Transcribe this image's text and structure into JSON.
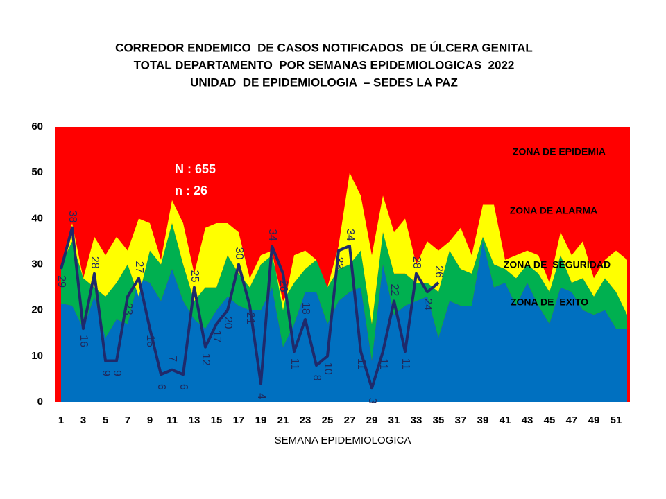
{
  "chart_data": {
    "type": "line",
    "title": [
      "CORREDOR ENDEMICO  DE CASOS NOTIFICADOS  DE ÚLCERA GENITAL",
      "TOTAL DEPARTAMENTO  POR SEMANAS EPIDEMIOLOGICAS  2022",
      "UNIDAD  DE EPIDEMIOLOGIA  – SEDES LA PAZ"
    ],
    "x_label": "SEMANA EPIDEMIOLOGICA",
    "annotations": [
      "N : 655",
      "n : 26",
      "ZONA DE EPIDEMIA"
    ],
    "plot_color": "#ff0000",
    "x": [
      1,
      2,
      3,
      4,
      5,
      6,
      7,
      8,
      9,
      10,
      11,
      12,
      13,
      14,
      15,
      16,
      17,
      18,
      19,
      20,
      21,
      22,
      23,
      24,
      25,
      26,
      27,
      28,
      29,
      30,
      31,
      32,
      33,
      34,
      35,
      36,
      37,
      38,
      39,
      40,
      41,
      42,
      43,
      44,
      45,
      46,
      47,
      48,
      49,
      50,
      51,
      52
    ],
    "xlim": [
      0.5,
      52.5
    ],
    "xticks": [
      1,
      3,
      5,
      7,
      9,
      11,
      13,
      15,
      17,
      19,
      21,
      23,
      25,
      27,
      29,
      31,
      33,
      35,
      37,
      39,
      41,
      43,
      45,
      47,
      49,
      51
    ],
    "ylim": [
      0,
      60
    ],
    "yticks": [
      0,
      10,
      20,
      30,
      40,
      50,
      60
    ],
    "series": [
      {
        "name": "ZONA DE  EXITO",
        "type": "area",
        "color": "#0070c0",
        "values": [
          21.5,
          21,
          16,
          23,
          14,
          18,
          17,
          27,
          26,
          22,
          29,
          22,
          18,
          16,
          20,
          23,
          21,
          20,
          20,
          25,
          12,
          17,
          24,
          24,
          17,
          22,
          24,
          25,
          9,
          30,
          19,
          21,
          22,
          23,
          14,
          22,
          21,
          21,
          35,
          25,
          26,
          21,
          26,
          21,
          17,
          25,
          24,
          20,
          19,
          20,
          16,
          16
        ]
      },
      {
        "name": "ZONA DE  SEGURIDAD",
        "type": "area",
        "color": "#00b050",
        "values": [
          30,
          35,
          27,
          25,
          23,
          26,
          30,
          23,
          33,
          30,
          39,
          30,
          22,
          25,
          25,
          32,
          28,
          25,
          30,
          32,
          22,
          26,
          29,
          31,
          25,
          29,
          30,
          33,
          17,
          37,
          28,
          28,
          26,
          26,
          24,
          33,
          29,
          28,
          36,
          30,
          29,
          27,
          30,
          28,
          24,
          32,
          26,
          27,
          23,
          27,
          24,
          19
        ]
      },
      {
        "name": "ZONA DE ALARMA",
        "type": "area",
        "color": "#ffff00",
        "values": [
          30,
          39,
          27,
          36,
          32,
          36,
          33,
          40,
          39,
          31,
          44,
          39,
          28,
          38,
          39,
          39,
          37,
          27,
          32,
          33,
          20,
          32,
          33,
          31,
          25,
          34,
          50,
          45,
          32,
          45,
          37,
          40,
          30,
          35,
          33,
          35,
          38,
          32,
          43,
          43,
          31,
          32,
          33,
          32,
          26,
          37,
          32,
          35,
          27,
          31,
          33,
          31
        ]
      },
      {
        "type": "line",
        "color": "#1f2a6b",
        "values": [
          29,
          38,
          16,
          28,
          9,
          9,
          23,
          27,
          16,
          6,
          7,
          6,
          25,
          12,
          17,
          20,
          30,
          21,
          4,
          34,
          28,
          11,
          18,
          8,
          10,
          33,
          34,
          11,
          3,
          11,
          22,
          11,
          28,
          24,
          26,
          null,
          null,
          null,
          null,
          null,
          null,
          null,
          null,
          null,
          null,
          null,
          null,
          null,
          null,
          null,
          null,
          null
        ]
      }
    ]
  }
}
